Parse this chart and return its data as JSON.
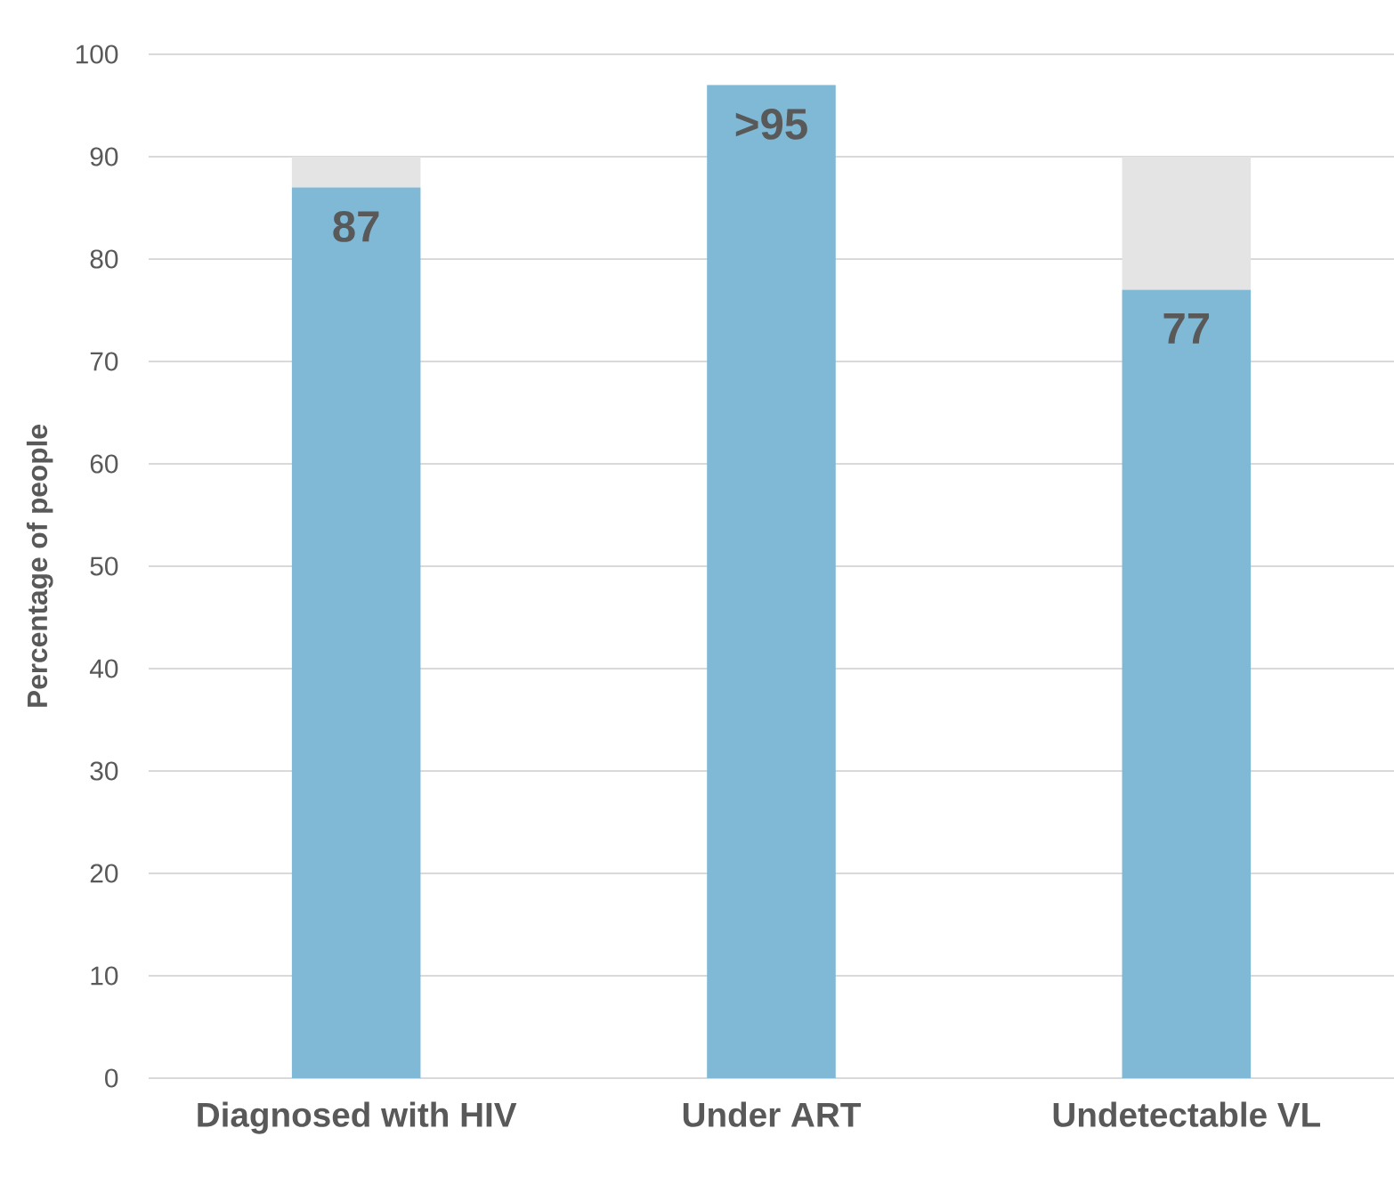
{
  "chart_data": {
    "type": "bar",
    "stacked": true,
    "ylabel": "Percentage of people",
    "categories": [
      "Diagnosed with HIV",
      "Under ART",
      "Undetectable VL"
    ],
    "series": [
      {
        "color": "#7fb9d6",
        "values": [
          87,
          97,
          77
        ],
        "value_labels": [
          "87",
          ">95",
          "77"
        ]
      },
      {
        "color": "#e4e4e4",
        "values": [
          3,
          0,
          13
        ]
      }
    ],
    "ylim": [
      0,
      100
    ],
    "yticks": [
      0,
      10,
      20,
      30,
      40,
      50,
      60,
      70,
      80,
      90,
      100
    ],
    "grid": "y"
  }
}
